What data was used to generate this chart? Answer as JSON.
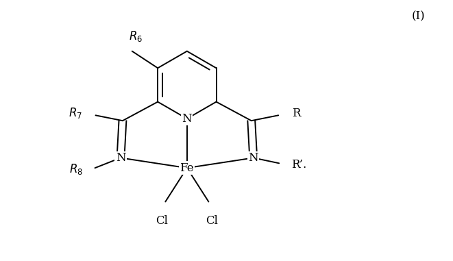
{
  "bg_color": "#ffffff",
  "line_color": "#000000",
  "text_color": "#000000",
  "figsize": [
    6.61,
    3.81
  ],
  "dpi": 100,
  "label_I": "(I)",
  "label_R6": "R$_6$",
  "label_R7": "R$_7$",
  "label_R8": "R$_8$",
  "label_N1": "N",
  "label_N2": "N",
  "label_N3": "N",
  "label_R": "R",
  "label_Rprime": "R’.",
  "label_Fe": "Fe",
  "label_Cl1": "Cl",
  "label_Cl2": "Cl"
}
